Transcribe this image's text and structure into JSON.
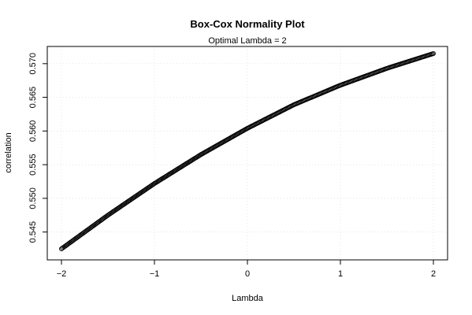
{
  "chart_data": {
    "type": "scatter",
    "title": "Box-Cox Normality Plot",
    "subtitle": "Optimal Lambda = 2",
    "xlabel": "Lambda",
    "ylabel": "correlation",
    "xlim": [
      -2,
      2
    ],
    "ylim": [
      0.5425,
      0.5715
    ],
    "x_ticks": [
      -2,
      -1,
      0,
      1,
      2
    ],
    "x_tick_labels": [
      "−2",
      "−1",
      "0",
      "1",
      "2"
    ],
    "y_ticks": [
      0.545,
      0.55,
      0.555,
      0.56,
      0.565,
      0.57
    ],
    "y_tick_labels": [
      "0.545",
      "0.550",
      "0.555",
      "0.560",
      "0.565",
      "0.570"
    ],
    "grid": true,
    "series": [
      {
        "marker": "open-circle",
        "color": "#000000",
        "x": [
          -2.0,
          -1.5,
          -1.0,
          -0.5,
          0.0,
          0.5,
          1.0,
          1.5,
          2.0
        ],
        "y": [
          0.5425,
          0.5475,
          0.5522,
          0.5565,
          0.5604,
          0.5639,
          0.5668,
          0.5693,
          0.5715
        ]
      }
    ]
  }
}
